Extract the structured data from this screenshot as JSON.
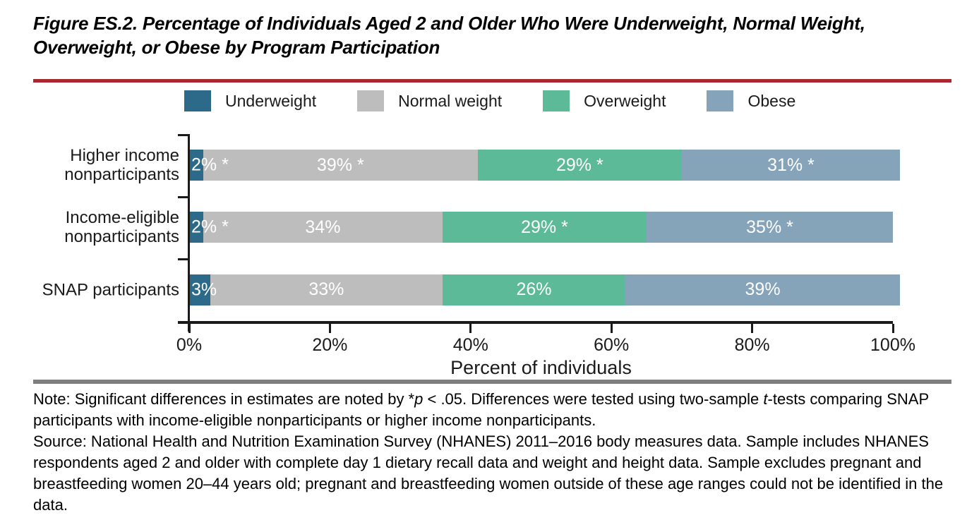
{
  "header": {
    "title": "Figure ES.2. Percentage of Individuals Aged 2 and Older Who Were Underweight, Normal Weight, Overweight, or Obese by Program Participation",
    "rule_color": "#a7282e"
  },
  "legend": {
    "items": [
      {
        "label": "Underweight",
        "color": "#2d6a8a"
      },
      {
        "label": "Normal weight",
        "color": "#bdbdbd"
      },
      {
        "label": "Overweight",
        "color": "#5dba99"
      },
      {
        "label": "Obese",
        "color": "#85a3b9"
      }
    ]
  },
  "chart_data": {
    "type": "bar",
    "orientation": "horizontal",
    "stacked": true,
    "title": "",
    "xlabel": "Percent of individuals",
    "ylabel": "",
    "xlim": [
      0,
      100
    ],
    "x_ticks": [
      {
        "value": 0,
        "label": "0%"
      },
      {
        "value": 20,
        "label": "20%"
      },
      {
        "value": 40,
        "label": "40%"
      },
      {
        "value": 60,
        "label": "60%"
      },
      {
        "value": 80,
        "label": "80%"
      },
      {
        "value": 100,
        "label": "100%"
      }
    ],
    "grid": false,
    "legend_position": "top",
    "categories": [
      "Higher income nonparticipants",
      "Income-eligible nonparticipants",
      "SNAP participants"
    ],
    "category_label_lines": [
      [
        "Higher income",
        "nonparticipants"
      ],
      [
        "Income-eligible",
        "nonparticipants"
      ],
      [
        "SNAP participants"
      ]
    ],
    "series": [
      {
        "name": "Underweight",
        "color": "#2d6a8a",
        "values": [
          2,
          2,
          3
        ],
        "labels": [
          "2% *",
          "2% *",
          "3%"
        ]
      },
      {
        "name": "Normal weight",
        "color": "#bdbdbd",
        "values": [
          39,
          34,
          33
        ],
        "labels": [
          "39% *",
          "34%",
          "33%"
        ]
      },
      {
        "name": "Overweight",
        "color": "#5dba99",
        "values": [
          29,
          29,
          26
        ],
        "labels": [
          "29% *",
          "29% *",
          "26%"
        ]
      },
      {
        "name": "Obese",
        "color": "#85a3b9",
        "values": [
          31,
          35,
          39
        ],
        "labels": [
          "31% *",
          "35% *",
          "39%"
        ]
      }
    ],
    "bar_label_color": "#ffffff",
    "axis_color": "#1a1a1a"
  },
  "footer": {
    "rule_color": "#7f7f7f",
    "note_segments": [
      {
        "text": "Note: Significant differences in estimates are noted by *",
        "italic": false
      },
      {
        "text": "p",
        "italic": true
      },
      {
        "text": " < .05. Differences were tested using two-sample ",
        "italic": false
      },
      {
        "text": "t",
        "italic": true
      },
      {
        "text": "-tests comparing SNAP participants with income-eligible nonparticipants or higher income nonparticipants.",
        "italic": false
      }
    ],
    "source_text": "Source: National Health and Nutrition Examination Survey (NHANES) 2011–2016 body measures data. Sample includes NHANES respondents aged 2 and older with complete day 1 dietary recall data and weight and height data. Sample excludes pregnant and breastfeeding women 20–44 years old; pregnant and breastfeeding women outside of these age ranges could not be identified in the data."
  }
}
